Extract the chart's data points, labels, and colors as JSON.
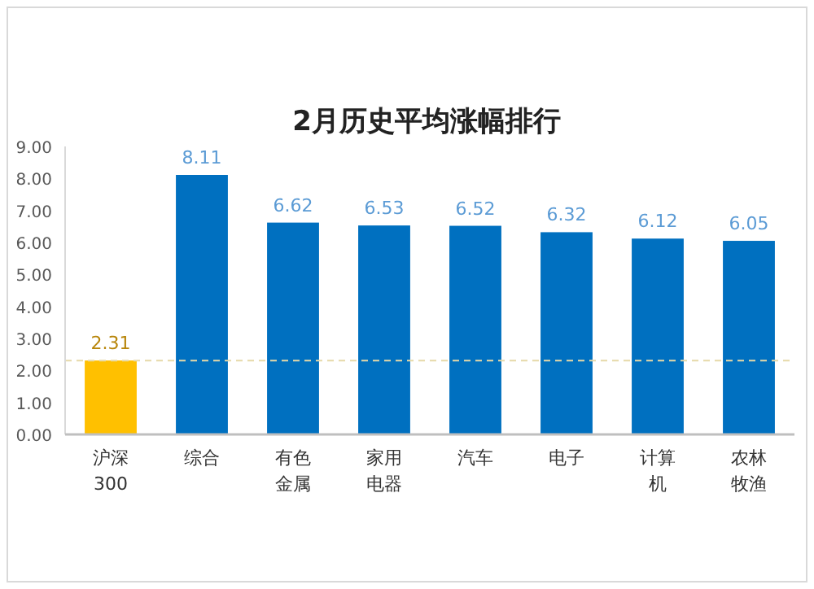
{
  "chart_data": {
    "type": "bar",
    "title": "2月历史平均涨幅排行",
    "categories": [
      "沪深300",
      "综合",
      "有色金属",
      "家用电器",
      "汽车",
      "电子",
      "计算机",
      "农林牧渔"
    ],
    "values": [
      2.31,
      8.11,
      6.62,
      6.53,
      6.52,
      6.32,
      6.12,
      6.05
    ],
    "colors": [
      "#ffc000",
      "#0070c0",
      "#0070c0",
      "#0070c0",
      "#0070c0",
      "#0070c0",
      "#0070c0",
      "#0070c0"
    ],
    "ylim": [
      0,
      9
    ],
    "yticks": [
      {
        "value": 0,
        "label": "0.00"
      },
      {
        "value": 1,
        "label": "1.00"
      },
      {
        "value": 2,
        "label": "2.00"
      },
      {
        "value": 3,
        "label": "3.00"
      },
      {
        "value": 4,
        "label": "4.00"
      },
      {
        "value": 5,
        "label": "5.00"
      },
      {
        "value": 6,
        "label": "6.00"
      },
      {
        "value": 7,
        "label": "7.00"
      },
      {
        "value": 8,
        "label": "8.00"
      },
      {
        "value": 9,
        "label": "9.00"
      }
    ],
    "ref_lines": [
      {
        "axis": "y",
        "value": 2.31,
        "color": "#e6d9a8",
        "line_style": "dashed"
      }
    ],
    "data_labels": true,
    "grid": false
  }
}
